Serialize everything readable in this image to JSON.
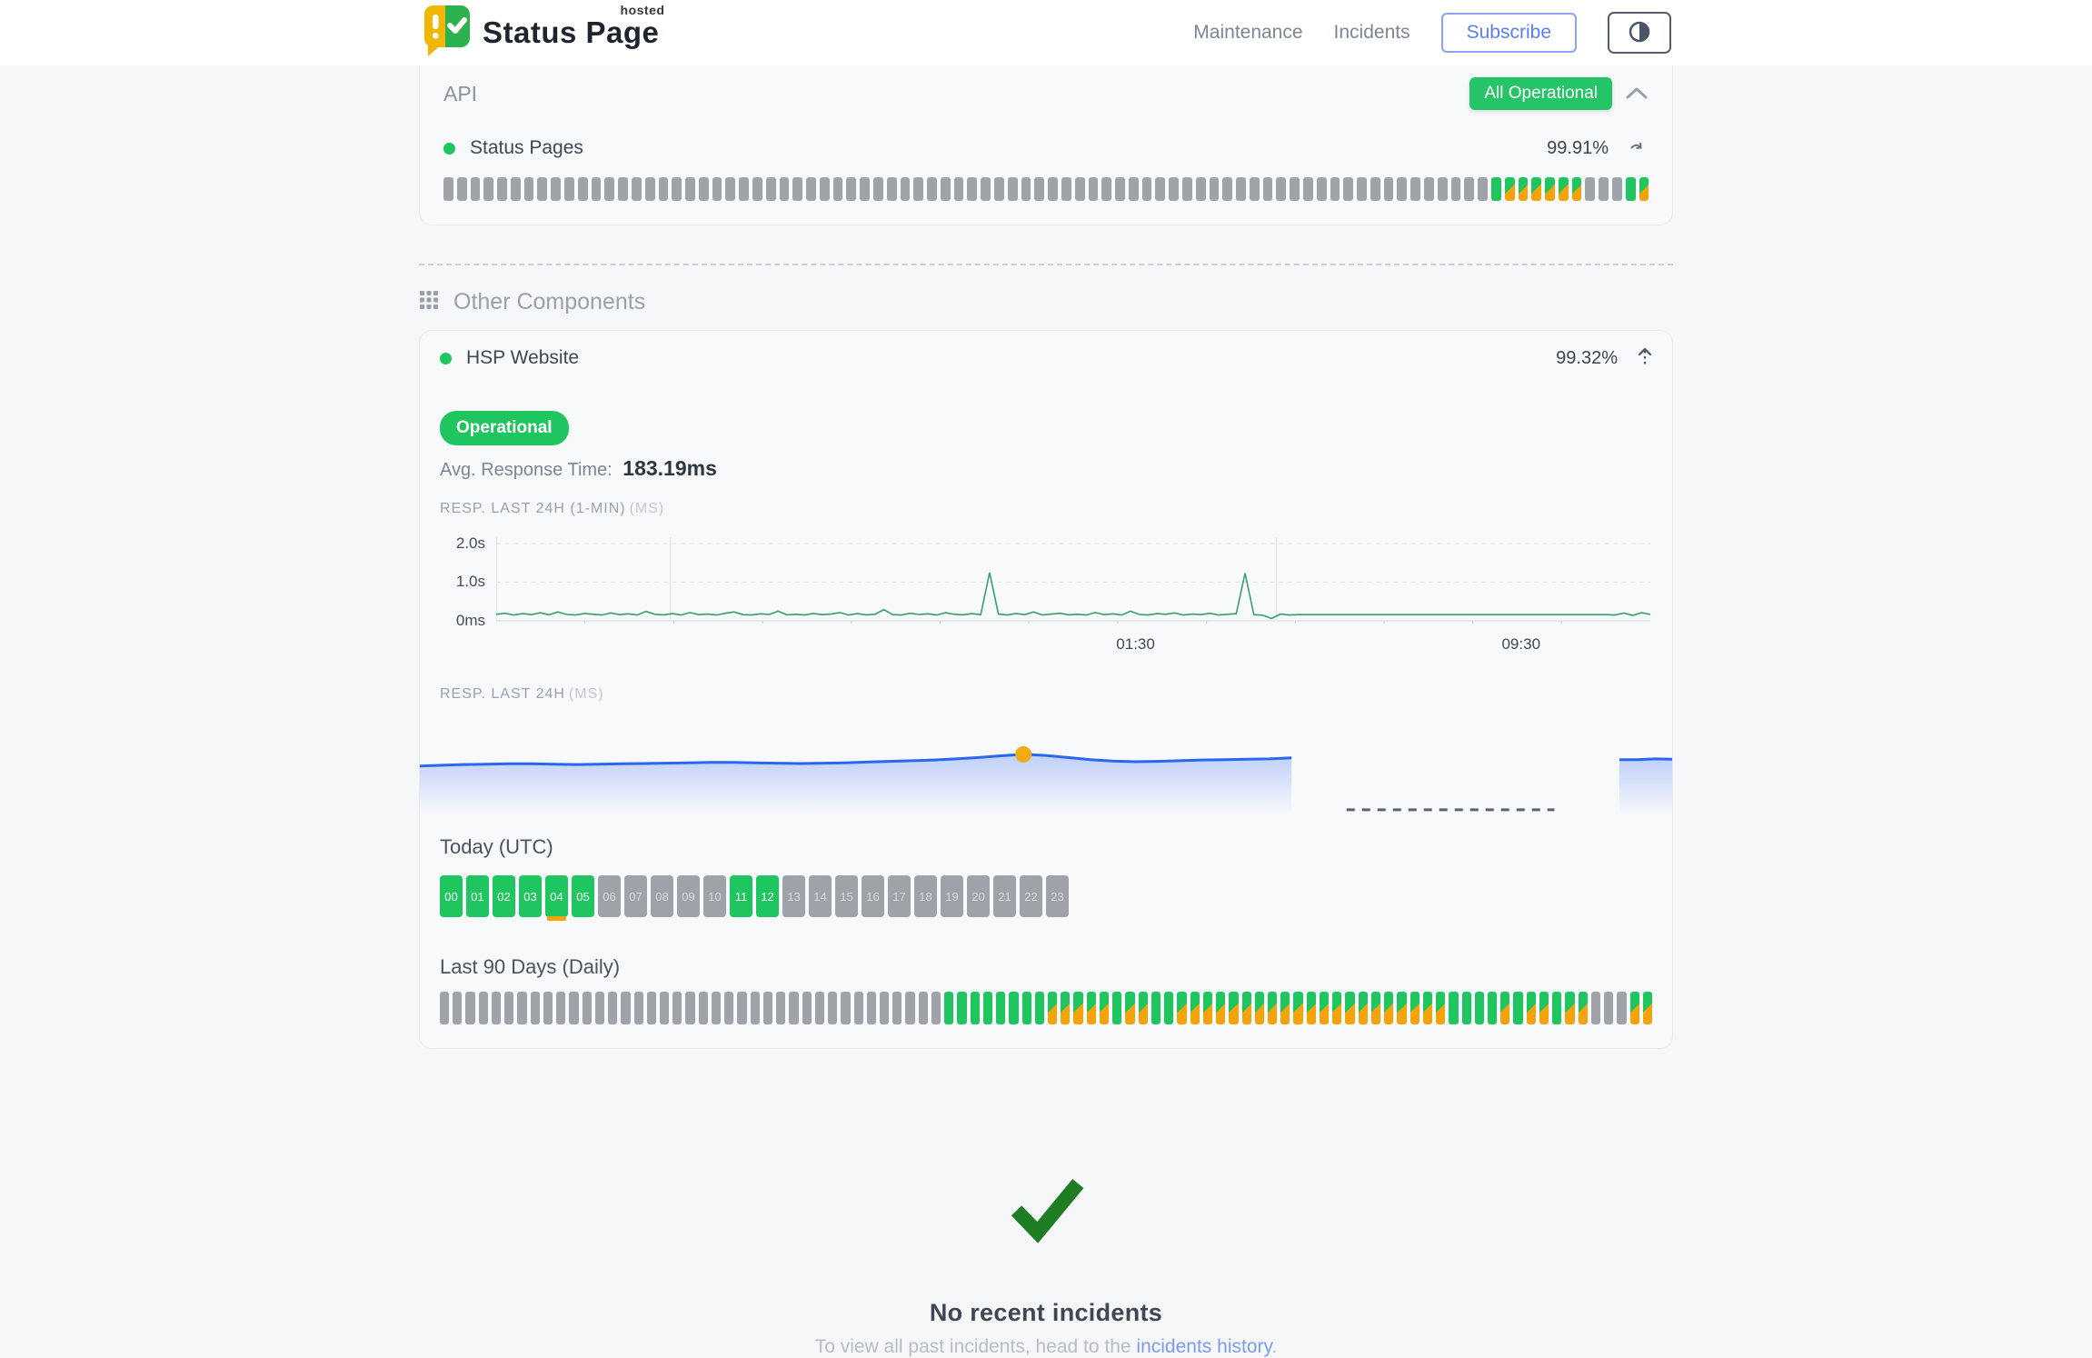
{
  "header": {
    "brand": {
      "name": "Status Page",
      "superscript": "hosted"
    },
    "nav": [
      "Maintenance",
      "Incidents"
    ],
    "subscribe_label": "Subscribe"
  },
  "api_section": {
    "title": "API",
    "status_badge": "All Operational",
    "component": {
      "name": "Status Pages",
      "uptime": "99.91%"
    },
    "bars_code": "ggggggggggggggggggggggggggggggggggggggggggggggggggggggggggggggggggggggggggggggoppppppgggop"
  },
  "other_components": {
    "heading": "Other Components",
    "component": {
      "name": "HSP Website",
      "uptime": "99.32%",
      "status_badge": "Operational",
      "avg_label": "Avg. Response Time:",
      "avg_value": "183.19ms"
    },
    "resp1_label": "RESP. LAST 24H (1-MIN)",
    "resp1_unit": "(MS)",
    "resp2_label": "RESP. LAST 24H",
    "resp2_unit": "(MS)",
    "today": {
      "label": "Today (UTC)",
      "hours_code": "oooonogggggooggggggggggg"
    },
    "last90": {
      "label": "Last 90 Days (Daily)",
      "bars_code": "gggggggggggggggggggggggggggggggggggggggoooooooopppppoppoopppppppppppppppppppppoooopoppoppgggpp"
    }
  },
  "incidents": {
    "title": "No recent incidents",
    "subtext_prefix": "To view all past incidents, head to the ",
    "link_text": "incidents history",
    "subtext_suffix": "."
  },
  "colors": {
    "operational_green": "#1fc55e",
    "degraded_orange": "#f5a30b",
    "nodata_gray": "#9fa2a8",
    "check_green": "#1e7d22",
    "accent_blue": "#5b7ef5",
    "chart_line_green": "#359e67",
    "chart_line_blue": "#2a66ee",
    "marker_orange": "#f2ab10"
  },
  "chart_data": [
    {
      "type": "line",
      "title": "RESP. LAST 24H (1-MIN)",
      "unit": "ms",
      "ylim": [
        0,
        2000
      ],
      "ytick_labels": [
        "0ms",
        "1.0s",
        "2.0s"
      ],
      "xticks": [
        {
          "label": "01:30",
          "pos": 0.554
        },
        {
          "label": "09:30",
          "pos": 0.888
        }
      ],
      "vgrid": [
        0.151,
        0.676
      ],
      "values": [
        170,
        195,
        150,
        185,
        160,
        210,
        155,
        230,
        165,
        150,
        190,
        170,
        150,
        205,
        160,
        180,
        150,
        245,
        170,
        155,
        185,
        150,
        215,
        160,
        175,
        150,
        195,
        230,
        160,
        150,
        180,
        165,
        250,
        155,
        170,
        150,
        190,
        160,
        175,
        215,
        150,
        185,
        155,
        170,
        290,
        160,
        150,
        195,
        165,
        180,
        150,
        210,
        170,
        155,
        185,
        160,
        1250,
        175,
        150,
        190,
        160,
        230,
        150,
        175,
        195,
        155,
        170,
        150,
        215,
        160,
        180,
        150,
        250,
        165,
        150,
        185,
        170,
        205,
        150,
        175,
        160,
        195,
        150,
        170,
        185,
        1230,
        160,
        145,
        60,
        175,
        150,
        160,
        160,
        160,
        160,
        160,
        160,
        160,
        160,
        160,
        160,
        160,
        160,
        160,
        160,
        160,
        160,
        160,
        160,
        160,
        160,
        160,
        160,
        160,
        160,
        160,
        160,
        160,
        160,
        160,
        160,
        160,
        160,
        160,
        160,
        160,
        160,
        150,
        200,
        140,
        210,
        165
      ]
    },
    {
      "type": "area",
      "title": "RESP. LAST 24H",
      "unit": "ms",
      "ylim": [
        0,
        280
      ],
      "segments": [
        {
          "x_start": 0.0,
          "x_end": 0.696,
          "values": [
            172,
            174,
            176,
            177,
            178,
            178,
            177,
            176,
            177,
            178,
            179,
            180,
            181,
            182,
            182,
            181,
            180,
            179,
            180,
            181,
            183,
            185,
            187,
            189,
            192,
            196,
            201,
            205,
            202,
            196,
            190,
            186,
            184,
            185,
            187,
            189,
            190,
            191,
            192,
            195
          ]
        },
        {
          "x_start": 0.958,
          "x_end": 1.0,
          "values": [
            190,
            190,
            192,
            191
          ]
        }
      ],
      "gap_dash": {
        "x_start": 0.74,
        "x_end": 0.906,
        "y_value": 47
      },
      "marker": {
        "x": 0.482,
        "value": 205
      }
    }
  ]
}
